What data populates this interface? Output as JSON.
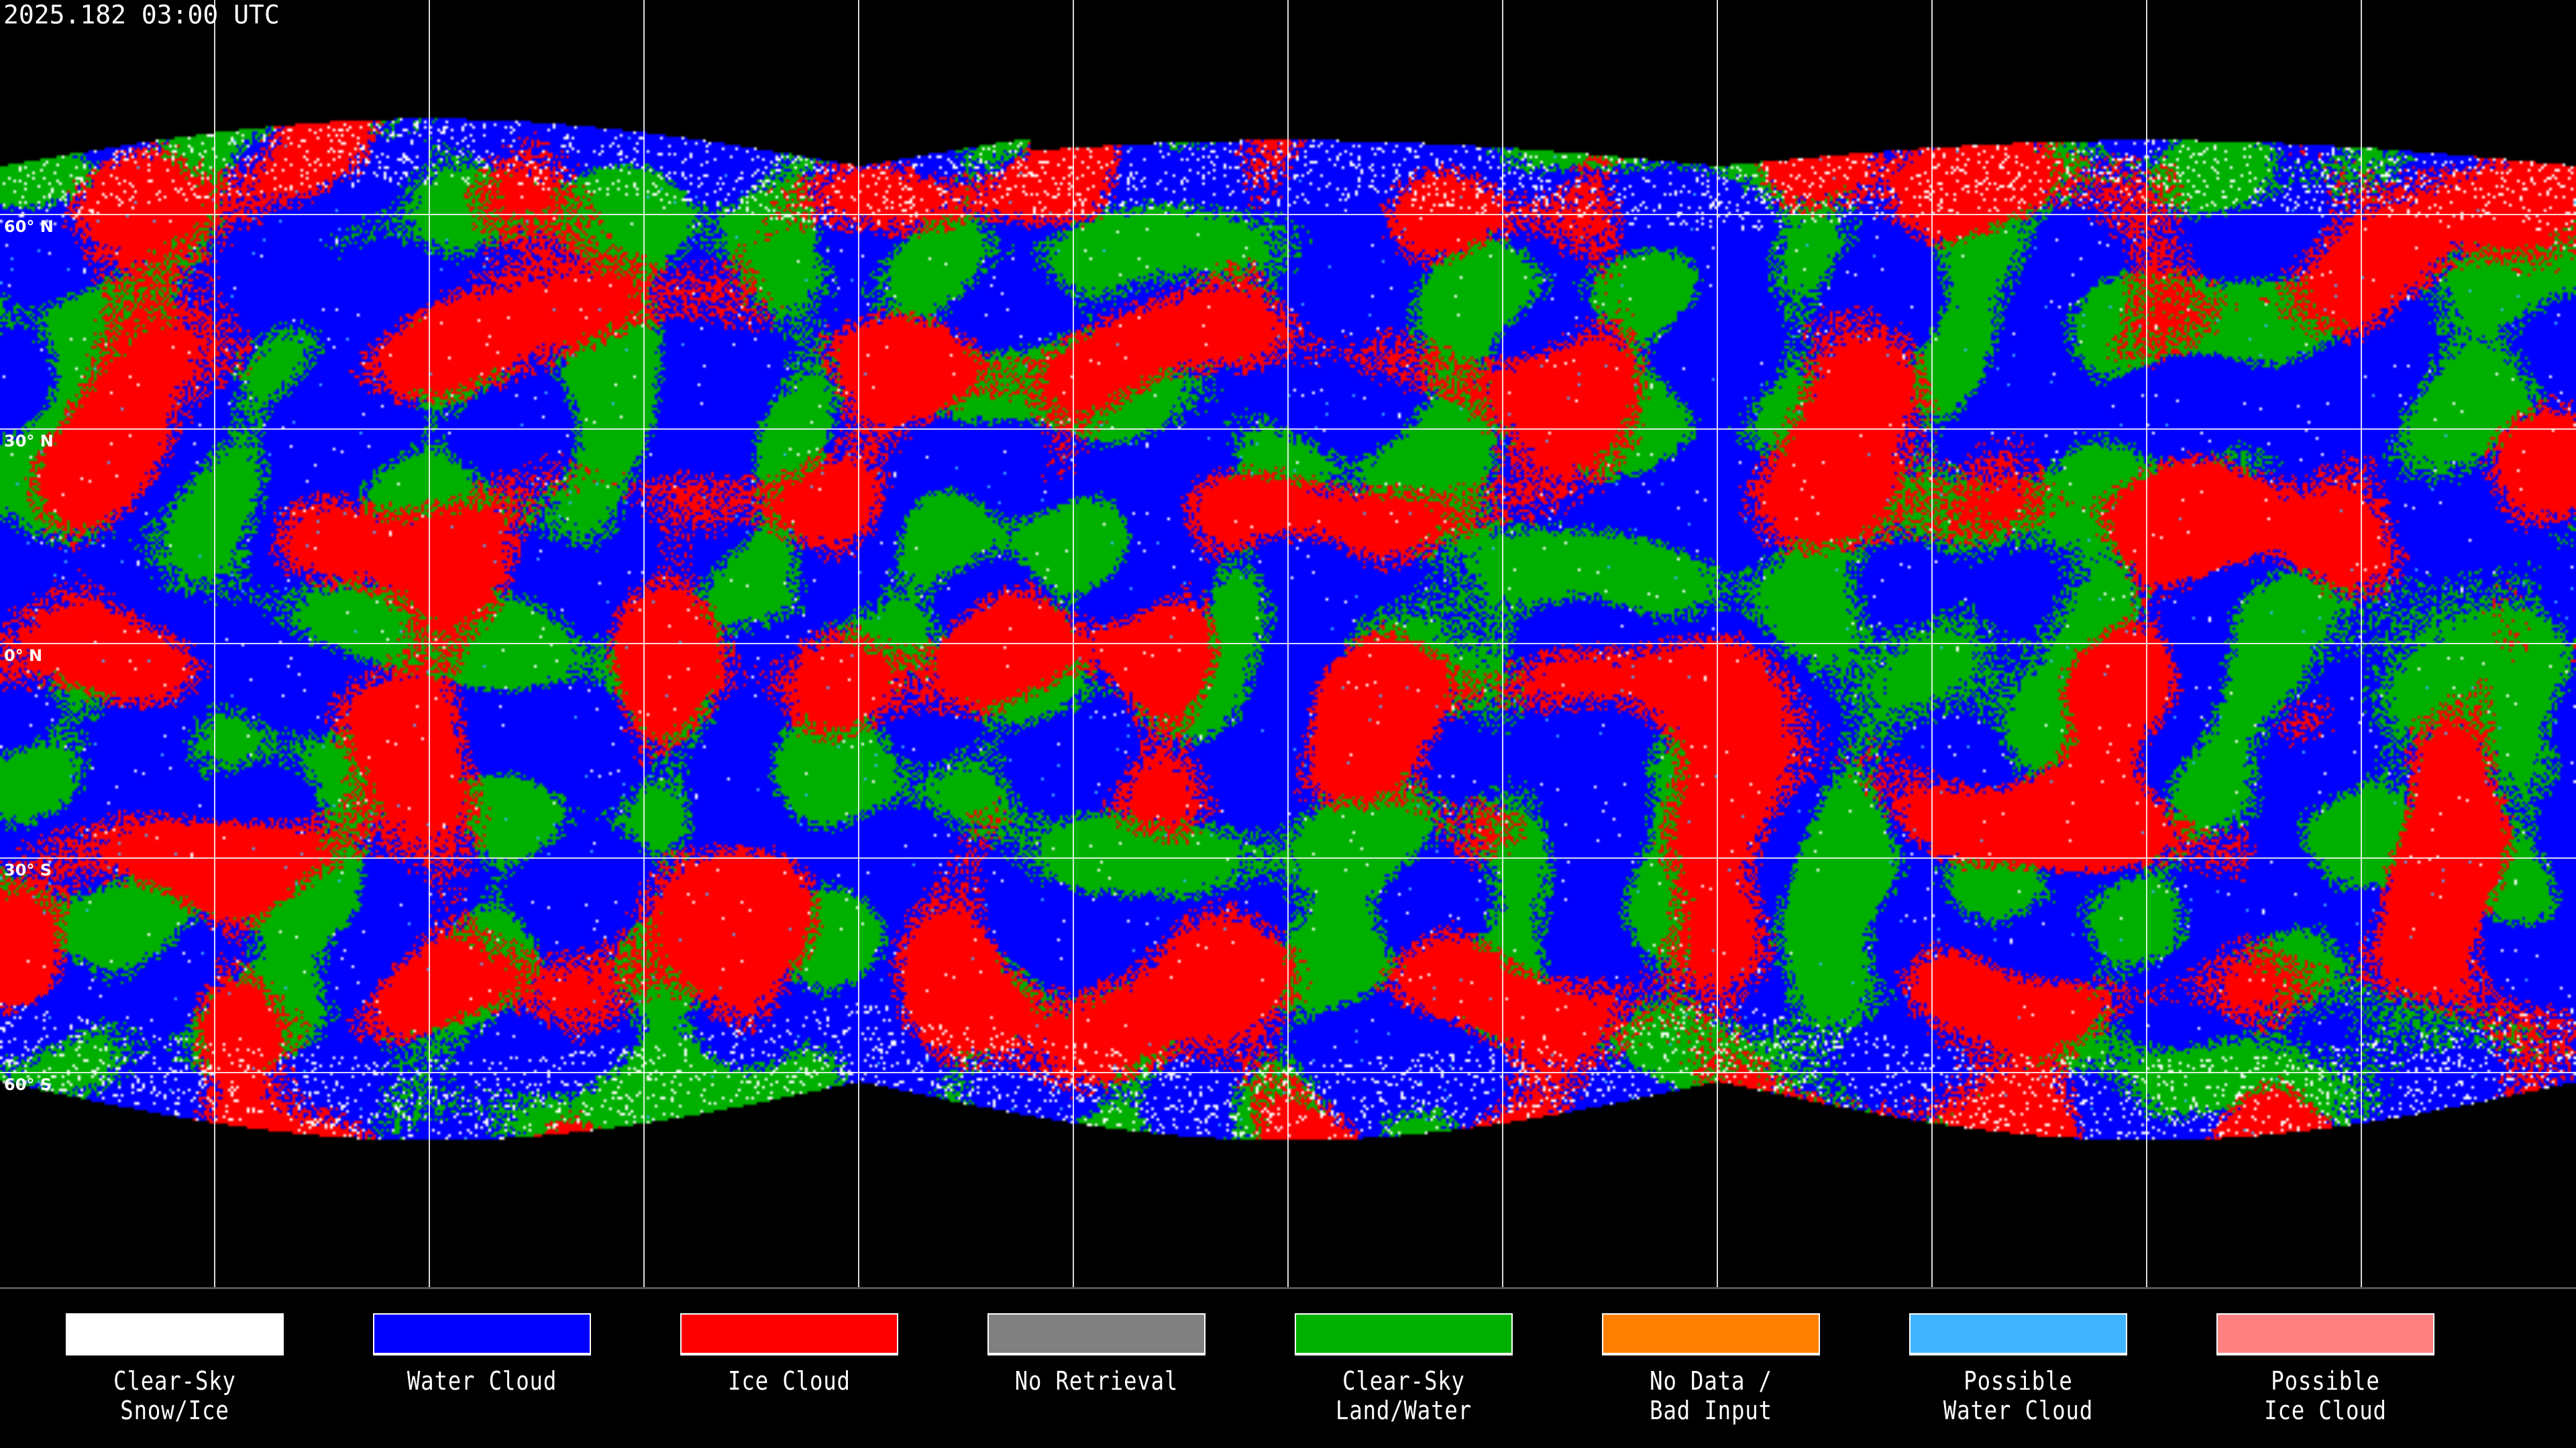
{
  "title": "2025.182 03:00 UTC",
  "grid": {
    "longitude_step_deg": 30,
    "latitude_labels": [
      "60° N",
      "30° N",
      "0° N",
      "30° S",
      "60° S"
    ],
    "latitudes": [
      60,
      30,
      0,
      -30,
      -60
    ]
  },
  "legend": [
    {
      "label": "Clear-Sky\nSnow/Ice",
      "color": "#ffffff"
    },
    {
      "label": "Water Cloud",
      "color": "#0000ff"
    },
    {
      "label": "Ice Cloud",
      "color": "#ff0000"
    },
    {
      "label": "No Retrieval",
      "color": "#808080"
    },
    {
      "label": "Clear-Sky\nLand/Water",
      "color": "#00b000"
    },
    {
      "label": "No Data /\nBad Input",
      "color": "#ff8000"
    },
    {
      "label": "Possible\nWater Cloud",
      "color": "#40b4ff"
    },
    {
      "label": "Possible\nIce Cloud",
      "color": "#ff8080"
    }
  ]
}
